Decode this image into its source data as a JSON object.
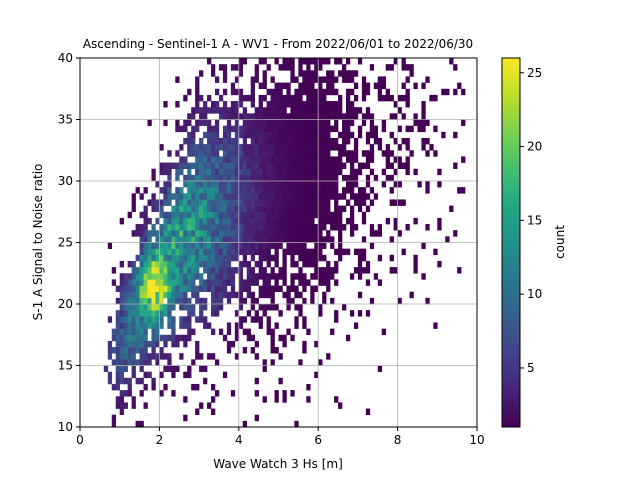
{
  "chart_data": {
    "type": "heatmap",
    "title": "Ascending - Sentinel-1 A - WV1 - From 2022/06/01 to 2022/06/30",
    "xlabel": "Wave Watch 3 Hs [m]",
    "ylabel": "S-1 A Signal to Noise ratio",
    "xlim": [
      0,
      10
    ],
    "ylim": [
      10,
      40
    ],
    "xticks": [
      0,
      2,
      4,
      6,
      8,
      10
    ],
    "yticks": [
      10,
      15,
      20,
      25,
      30,
      35,
      40
    ],
    "grid": true,
    "colorbar": {
      "label": "count",
      "min": 1,
      "max": 26,
      "ticks": [
        5,
        10,
        15,
        20,
        25
      ],
      "colormap": "viridis"
    },
    "bins": {
      "dx": 0.1,
      "dy": 0.5
    },
    "distribution": {
      "description_of_density_ridge": [
        {
          "x": 1.0,
          "y": 17.0
        },
        {
          "x": 1.5,
          "y": 20.0
        },
        {
          "x": 2.0,
          "y": 22.5
        },
        {
          "x": 2.5,
          "y": 25.0
        },
        {
          "x": 3.0,
          "y": 26.5
        },
        {
          "x": 4.0,
          "y": 28.5
        },
        {
          "x": 5.0,
          "y": 30.0
        },
        {
          "x": 6.0,
          "y": 31.5
        },
        {
          "x": 7.0,
          "y": 32.5
        },
        {
          "x": 8.0,
          "y": 34.0
        },
        {
          "x": 9.0,
          "y": 35.0
        }
      ],
      "peak": {
        "x": 1.8,
        "y": 21.0,
        "count": 25
      }
    }
  }
}
